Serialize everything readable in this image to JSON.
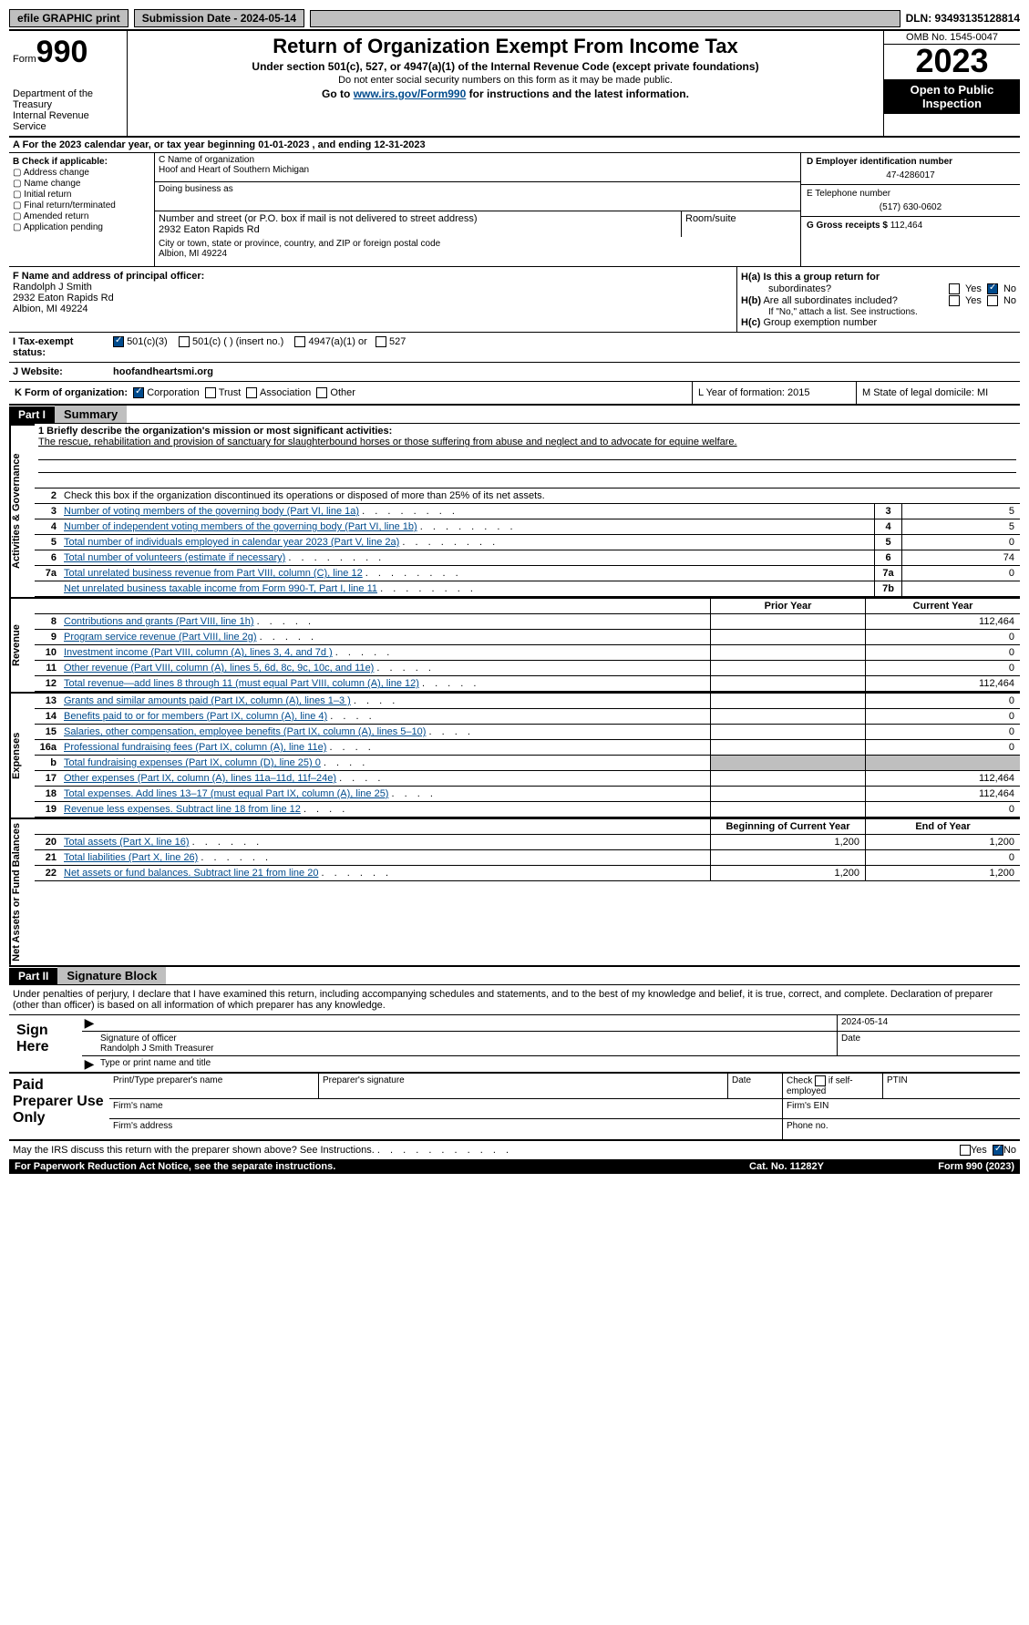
{
  "topbar": {
    "efile": "efile GRAPHIC print",
    "submission": "Submission Date - 2024-05-14",
    "dln": "DLN: 93493135128814"
  },
  "header": {
    "form_label": "Form",
    "form_num": "990",
    "dept": "Department of the Treasury",
    "irs": "Internal Revenue Service",
    "title": "Return of Organization Exempt From Income Tax",
    "sub1": "Under section 501(c), 527, or 4947(a)(1) of the Internal Revenue Code (except private foundations)",
    "sub2": "Do not enter social security numbers on this form as it may be made public.",
    "sub3_pre": "Go to ",
    "sub3_link": "www.irs.gov/Form990",
    "sub3_post": " for instructions and the latest information.",
    "omb": "OMB No. 1545-0047",
    "year": "2023",
    "open": "Open to Public Inspection"
  },
  "period": {
    "a": "A",
    "text": "For the 2023 calendar year, or tax year beginning 01-01-2023    , and ending 12-31-2023"
  },
  "boxB": {
    "hdr": "B Check if applicable:",
    "opts": [
      "Address change",
      "Name change",
      "Initial return",
      "Final return/terminated",
      "Amended return",
      "Application pending"
    ]
  },
  "boxC": {
    "name_lbl": "C Name of organization",
    "name": "Hoof and Heart of Southern Michigan",
    "dba_lbl": "Doing business as",
    "addr_lbl": "Number and street (or P.O. box if mail is not delivered to street address)",
    "addr": "2932 Eaton Rapids Rd",
    "room_lbl": "Room/suite",
    "city_lbl": "City or town, state or province, country, and ZIP or foreign postal code",
    "city": "Albion, MI  49224"
  },
  "boxD": {
    "lbl": "D Employer identification number",
    "val": "47-4286017"
  },
  "boxE": {
    "lbl": "E Telephone number",
    "val": "(517) 630-0602"
  },
  "boxG": {
    "lbl": "G Gross receipts $",
    "val": "112,464"
  },
  "boxF": {
    "lbl": "F  Name and address of principal officer:",
    "name": "Randolph J Smith",
    "addr1": "2932 Eaton Rapids Rd",
    "addr2": "Albion, MI  49224"
  },
  "boxH": {
    "a_lbl": "H(a)  Is this a group return for",
    "a_lbl2": "subordinates?",
    "b_lbl": "H(b)  Are all subordinates included?",
    "b_note": "If \"No,\" attach a list. See instructions.",
    "c_lbl": "H(c)  Group exemption number",
    "yes": "Yes",
    "no": "No"
  },
  "boxI": {
    "lbl": "I    Tax-exempt status:",
    "opt1": "501(c)(3)",
    "opt2": "501(c) (  ) (insert no.)",
    "opt3": "4947(a)(1) or",
    "opt4": "527"
  },
  "boxJ": {
    "lbl": "J   Website:",
    "val": "hoofandheartsmi.org"
  },
  "boxK": {
    "lbl": "K Form of organization:",
    "o1": "Corporation",
    "o2": "Trust",
    "o3": "Association",
    "o4": "Other"
  },
  "boxL": {
    "lbl": "L Year of formation: 2015"
  },
  "boxM": {
    "lbl": "M State of legal domicile: MI"
  },
  "part1": {
    "hdr": "Part I",
    "title": "Summary"
  },
  "vtabs": {
    "gov": "Activities & Governance",
    "rev": "Revenue",
    "exp": "Expenses",
    "net": "Net Assets or Fund Balances"
  },
  "mission": {
    "lbl": "1  Briefly describe the organization's mission or most significant activities:",
    "txt": "The rescue, rehabilitation and provision of sanctuary for slaughterbound horses or those suffering from abuse and neglect and to advocate for equine welfare."
  },
  "line2": "Check this box      if the organization discontinued its operations or disposed of more than 25% of its net assets.",
  "gov_lines": [
    {
      "n": "3",
      "t": "Number of voting members of the governing body (Part VI, line 1a)",
      "b": "3",
      "v": "5"
    },
    {
      "n": "4",
      "t": "Number of independent voting members of the governing body (Part VI, line 1b)",
      "b": "4",
      "v": "5"
    },
    {
      "n": "5",
      "t": "Total number of individuals employed in calendar year 2023 (Part V, line 2a)",
      "b": "5",
      "v": "0"
    },
    {
      "n": "6",
      "t": "Total number of volunteers (estimate if necessary)",
      "b": "6",
      "v": "74"
    },
    {
      "n": "7a",
      "t": "Total unrelated business revenue from Part VIII, column (C), line 12",
      "b": "7a",
      "v": "0"
    },
    {
      "n": "",
      "t": "Net unrelated business taxable income from Form 990-T, Part I, line 11",
      "b": "7b",
      "v": ""
    }
  ],
  "col_hdrs": {
    "prior": "Prior Year",
    "current": "Current Year",
    "begin": "Beginning of Current Year",
    "end": "End of Year"
  },
  "rev_lines": [
    {
      "n": "8",
      "t": "Contributions and grants (Part VIII, line 1h)",
      "p": "",
      "c": "112,464"
    },
    {
      "n": "9",
      "t": "Program service revenue (Part VIII, line 2g)",
      "p": "",
      "c": "0"
    },
    {
      "n": "10",
      "t": "Investment income (Part VIII, column (A), lines 3, 4, and 7d )",
      "p": "",
      "c": "0"
    },
    {
      "n": "11",
      "t": "Other revenue (Part VIII, column (A), lines 5, 6d, 8c, 9c, 10c, and 11e)",
      "p": "",
      "c": "0"
    },
    {
      "n": "12",
      "t": "Total revenue—add lines 8 through 11 (must equal Part VIII, column (A), line 12)",
      "p": "",
      "c": "112,464"
    }
  ],
  "exp_lines": [
    {
      "n": "13",
      "t": "Grants and similar amounts paid (Part IX, column (A), lines 1–3 )",
      "p": "",
      "c": "0"
    },
    {
      "n": "14",
      "t": "Benefits paid to or for members (Part IX, column (A), line 4)",
      "p": "",
      "c": "0"
    },
    {
      "n": "15",
      "t": "Salaries, other compensation, employee benefits (Part IX, column (A), lines 5–10)",
      "p": "",
      "c": "0"
    },
    {
      "n": "16a",
      "t": "Professional fundraising fees (Part IX, column (A), line 11e)",
      "p": "",
      "c": "0"
    },
    {
      "n": "b",
      "t": "Total fundraising expenses (Part IX, column (D), line 25) 0",
      "p": "gray",
      "c": "gray"
    },
    {
      "n": "17",
      "t": "Other expenses (Part IX, column (A), lines 11a–11d, 11f–24e)",
      "p": "",
      "c": "112,464"
    },
    {
      "n": "18",
      "t": "Total expenses. Add lines 13–17 (must equal Part IX, column (A), line 25)",
      "p": "",
      "c": "112,464"
    },
    {
      "n": "19",
      "t": "Revenue less expenses. Subtract line 18 from line 12",
      "p": "",
      "c": "0"
    }
  ],
  "net_lines": [
    {
      "n": "20",
      "t": "Total assets (Part X, line 16)",
      "p": "1,200",
      "c": "1,200"
    },
    {
      "n": "21",
      "t": "Total liabilities (Part X, line 26)",
      "p": "",
      "c": "0"
    },
    {
      "n": "22",
      "t": "Net assets or fund balances. Subtract line 21 from line 20",
      "p": "1,200",
      "c": "1,200"
    }
  ],
  "part2": {
    "hdr": "Part II",
    "title": "Signature Block"
  },
  "sig": {
    "decl": "Under penalties of perjury, I declare that I have examined this return, including accompanying schedules and statements, and to the best of my knowledge and belief, it is true, correct, and complete. Declaration of preparer (other than officer) is based on all information of which preparer has any knowledge.",
    "sign_here": "Sign Here",
    "date": "2024-05-14",
    "sig_of": "Signature of officer",
    "officer": "Randolph J Smith Treasurer",
    "type_name": "Type or print name and title",
    "date_lbl": "Date"
  },
  "paid": {
    "title": "Paid Preparer Use Only",
    "h1": "Print/Type preparer's name",
    "h2": "Preparer's signature",
    "h3": "Date",
    "h4_pre": "Check",
    "h4_post": "if self-employed",
    "h5": "PTIN",
    "firm_name": "Firm's name",
    "firm_ein": "Firm's EIN",
    "firm_addr": "Firm's address",
    "phone": "Phone no."
  },
  "footer": {
    "discuss": "May the IRS discuss this return with the preparer shown above? See Instructions.",
    "yes": "Yes",
    "no": "No",
    "paperwork": "For Paperwork Reduction Act Notice, see the separate instructions.",
    "cat": "Cat. No. 11282Y",
    "form": "Form 990 (2023)"
  }
}
